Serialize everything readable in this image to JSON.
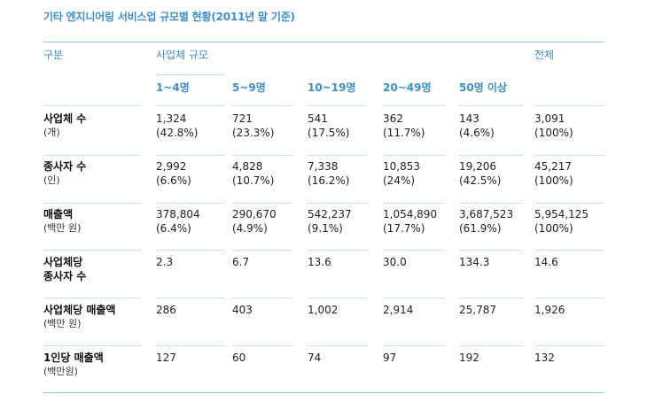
{
  "title": "기타 엔지니어링 서비스업 규모별 현황(2011년 말 기준)",
  "header": {
    "category": "구분",
    "size_group": "사업체 규모",
    "total": "전체",
    "sizes": [
      "1~4명",
      "5~9명",
      "10~19명",
      "20~49명",
      "50명 이상"
    ]
  },
  "rows": [
    {
      "label": "사업체 수",
      "unit": "(개)",
      "cells": [
        {
          "value": "1,324",
          "pct": "(42.8%)"
        },
        {
          "value": "721",
          "pct": "(23.3%)"
        },
        {
          "value": "541",
          "pct": "(17.5%)"
        },
        {
          "value": "362",
          "pct": "(11.7%)"
        },
        {
          "value": "143",
          "pct": "(4.6%)"
        },
        {
          "value": "3,091",
          "pct": "(100%)"
        }
      ]
    },
    {
      "label": "종사자 수",
      "unit": "(인)",
      "cells": [
        {
          "value": "2,992",
          "pct": "(6.6%)"
        },
        {
          "value": "4,828",
          "pct": "(10.7%)"
        },
        {
          "value": "7,338",
          "pct": "(16.2%)"
        },
        {
          "value": "10,853",
          "pct": "(24%)"
        },
        {
          "value": "19,206",
          "pct": "(42.5%)"
        },
        {
          "value": "45,217",
          "pct": "(100%)"
        }
      ]
    },
    {
      "label": "매출액",
      "unit": "(백만 원)",
      "cells": [
        {
          "value": "378,804",
          "pct": "(6.4%)"
        },
        {
          "value": "290,670",
          "pct": "(4.9%)"
        },
        {
          "value": "542,237",
          "pct": "(9.1%)"
        },
        {
          "value": "1,054,890",
          "pct": "(17.7%)"
        },
        {
          "value": "3,687,523",
          "pct": "(61.9%)"
        },
        {
          "value": "5,954,125",
          "pct": "(100%)"
        }
      ]
    },
    {
      "label": "사업체당",
      "label2": "종사자 수",
      "cells": [
        {
          "value": "2.3"
        },
        {
          "value": "6.7"
        },
        {
          "value": "13.6"
        },
        {
          "value": "30.0"
        },
        {
          "value": "134.3"
        },
        {
          "value": "14.6"
        }
      ]
    },
    {
      "label": "사업체당 매출액",
      "unit": "(백만 원)",
      "cells": [
        {
          "value": "286"
        },
        {
          "value": "403"
        },
        {
          "value": "1,002"
        },
        {
          "value": "2,914"
        },
        {
          "value": "25,787"
        },
        {
          "value": "1,926"
        }
      ]
    },
    {
      "label": "1인당 매출액",
      "unit": "(백만원)",
      "cells": [
        {
          "value": "127"
        },
        {
          "value": "60"
        },
        {
          "value": "74"
        },
        {
          "value": "97"
        },
        {
          "value": "192"
        },
        {
          "value": "132"
        }
      ]
    }
  ]
}
